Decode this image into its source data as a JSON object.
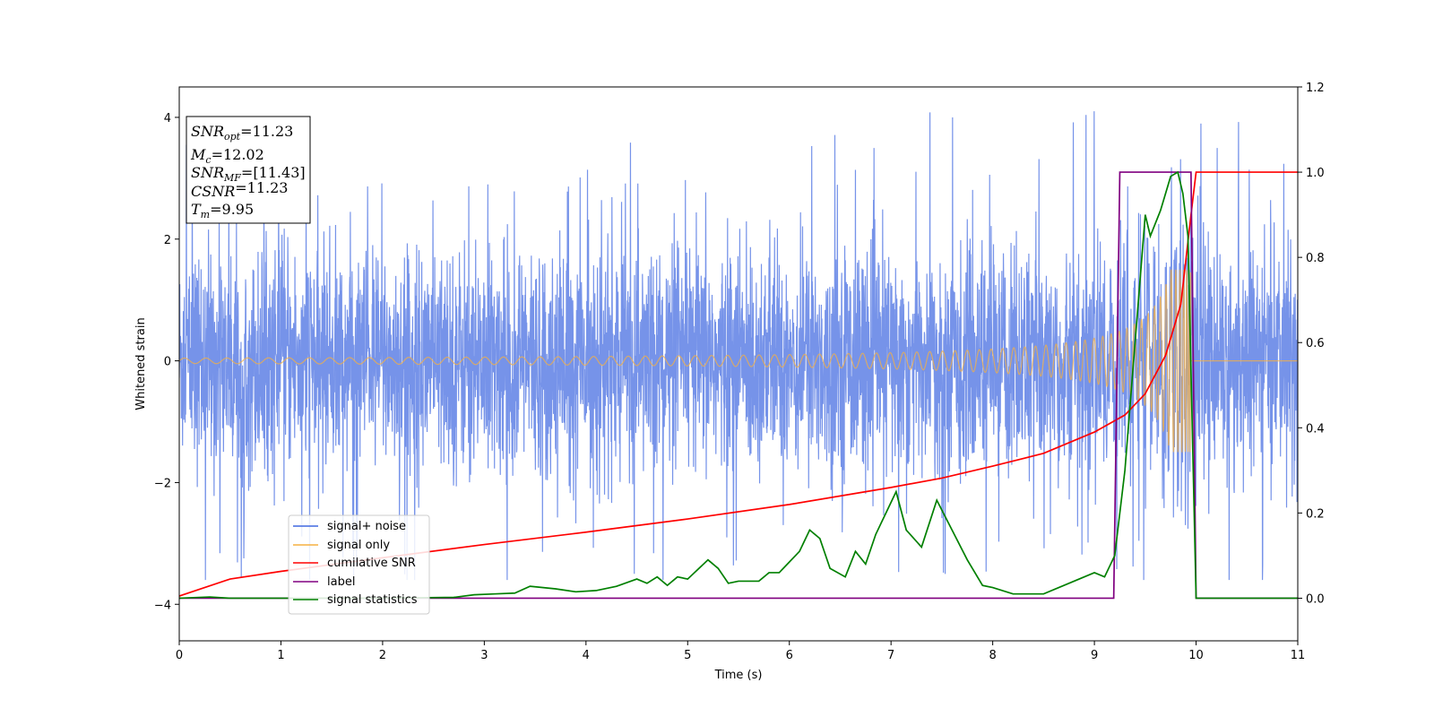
{
  "chart_data": {
    "type": "line",
    "xlabel": "Time (s)",
    "ylabel": "Whitened strain",
    "xlim": [
      0,
      11
    ],
    "ylim_left": [
      -4.6,
      4.5
    ],
    "ylim_right": [
      -0.1,
      1.2
    ],
    "xticks": [
      "0",
      "1",
      "2",
      "3",
      "4",
      "5",
      "6",
      "7",
      "8",
      "9",
      "10",
      "11"
    ],
    "yticks_left": [
      "−4",
      "−2",
      "0",
      "2",
      "4"
    ],
    "yticks_right": [
      "0.0",
      "0.2",
      "0.4",
      "0.6",
      "0.8",
      "1.0",
      "1.2"
    ],
    "grid": false,
    "legend_position": "lower-left",
    "annotation": {
      "lines": [
        {
          "main": "SNR",
          "sub": "opt",
          "rest": "=11.23"
        },
        {
          "main": "M",
          "sub": "c",
          "rest": "=12.02"
        },
        {
          "main": "SNR",
          "sub": "MF",
          "rest": "=[11.43]"
        },
        {
          "main": "CSNR",
          "sub": "",
          "rest": "=11.23"
        },
        {
          "main": "T",
          "sub": "m",
          "rest": "=9.95"
        }
      ]
    },
    "series": [
      {
        "name": "signal+ noise",
        "color": "#4169e1",
        "axis": "left",
        "description": "whitened noise with typical amplitude ~1, spikes up to about ±4 over 0–11 s"
      },
      {
        "name": "signal only",
        "color": "#f5b041",
        "axis": "left",
        "description": "chirp; amplitude grows from ~0.03 to ~1.5 near t=9.95 s, then zero",
        "merger_time": 9.95
      },
      {
        "name": "cumilative SNR",
        "color": "#ff0000",
        "axis": "right",
        "x": [
          0,
          0.5,
          1,
          2,
          3,
          4,
          5,
          6,
          7,
          7.5,
          8,
          8.5,
          9,
          9.3,
          9.5,
          9.7,
          9.85,
          9.95,
          10,
          11
        ],
        "y": [
          0.005,
          0.045,
          0.063,
          0.095,
          0.126,
          0.155,
          0.186,
          0.22,
          0.26,
          0.282,
          0.31,
          0.34,
          0.39,
          0.43,
          0.48,
          0.57,
          0.69,
          0.9,
          1.0,
          1.0
        ]
      },
      {
        "name": "label",
        "color": "#800080",
        "axis": "right",
        "x": [
          0,
          9.19,
          9.25,
          9.95,
          10.0,
          11
        ],
        "y": [
          0,
          0,
          1,
          1,
          0,
          0
        ]
      },
      {
        "name": "signal statistics",
        "color": "#008000",
        "axis": "right",
        "x": [
          0,
          0.3,
          0.5,
          1,
          2,
          2.7,
          2.9,
          3.1,
          3.3,
          3.45,
          3.7,
          3.9,
          4.1,
          4.3,
          4.5,
          4.6,
          4.7,
          4.8,
          4.9,
          5.0,
          5.2,
          5.3,
          5.4,
          5.5,
          5.7,
          5.8,
          5.9,
          6.1,
          6.2,
          6.3,
          6.4,
          6.55,
          6.65,
          6.75,
          6.85,
          6.95,
          7.05,
          7.15,
          7.3,
          7.45,
          7.6,
          7.75,
          7.9,
          8.0,
          8.2,
          8.5,
          8.8,
          9.0,
          9.1,
          9.2,
          9.3,
          9.4,
          9.5,
          9.55,
          9.65,
          9.75,
          9.82,
          9.87,
          9.92,
          10.0,
          11
        ],
        "y": [
          0.0,
          0.003,
          0.0,
          0.0,
          0.0,
          0.002,
          0.008,
          0.01,
          0.012,
          0.028,
          0.022,
          0.015,
          0.018,
          0.028,
          0.045,
          0.035,
          0.05,
          0.03,
          0.05,
          0.045,
          0.09,
          0.07,
          0.035,
          0.04,
          0.04,
          0.06,
          0.06,
          0.11,
          0.16,
          0.14,
          0.07,
          0.05,
          0.11,
          0.08,
          0.15,
          0.2,
          0.25,
          0.16,
          0.12,
          0.23,
          0.16,
          0.09,
          0.03,
          0.025,
          0.01,
          0.01,
          0.04,
          0.06,
          0.05,
          0.1,
          0.3,
          0.6,
          0.9,
          0.85,
          0.91,
          0.99,
          1.0,
          0.95,
          0.85,
          0.0,
          0.0
        ]
      }
    ]
  }
}
